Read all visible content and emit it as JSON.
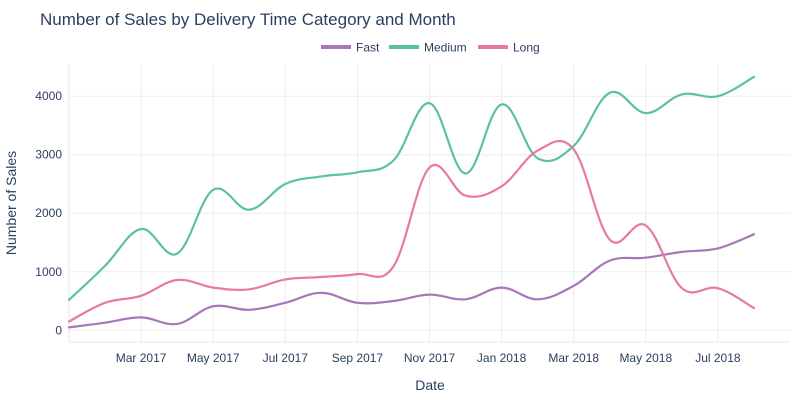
{
  "chart_data": {
    "type": "line",
    "title": "Number of Sales by Delivery Time Category and Month",
    "xlabel": "Date",
    "ylabel": "Number of Sales",
    "ylim": [
      -200,
      4550
    ],
    "y_ticks": [
      0,
      1000,
      2000,
      3000,
      4000
    ],
    "x_ticks": [
      "Mar 2017",
      "May 2017",
      "Jul 2017",
      "Sep 2017",
      "Nov 2017",
      "Jan 2018",
      "Mar 2018",
      "May 2018",
      "Jul 2018"
    ],
    "x": [
      "Jan 2017",
      "Feb 2017",
      "Mar 2017",
      "Apr 2017",
      "May 2017",
      "Jun 2017",
      "Jul 2017",
      "Aug 2017",
      "Sep 2017",
      "Oct 2017",
      "Nov 2017",
      "Dec 2017",
      "Jan 2018",
      "Feb 2018",
      "Mar 2018",
      "Apr 2018",
      "May 2018",
      "Jun 2018",
      "Jul 2018",
      "Aug 2018",
      "Sep 2018"
    ],
    "series": [
      {
        "name": "Fast",
        "color": "#a777b8",
        "values": [
          50,
          130,
          220,
          110,
          410,
          350,
          470,
          640,
          470,
          500,
          610,
          530,
          730,
          530,
          760,
          1190,
          1240,
          1340,
          1400,
          1640,
          null
        ]
      },
      {
        "name": "Medium",
        "color": "#5cc29c",
        "values": [
          520,
          1100,
          1730,
          1310,
          2400,
          2060,
          2500,
          2630,
          2700,
          2900,
          3880,
          2680,
          3860,
          2940,
          3150,
          4060,
          3710,
          4030,
          4000,
          4330,
          null
        ]
      },
      {
        "name": "Long",
        "color": "#e87aa0",
        "values": [
          150,
          470,
          590,
          860,
          730,
          700,
          870,
          910,
          960,
          1090,
          2780,
          2300,
          2460,
          3070,
          3090,
          1550,
          1790,
          720,
          720,
          380,
          null
        ]
      }
    ]
  }
}
